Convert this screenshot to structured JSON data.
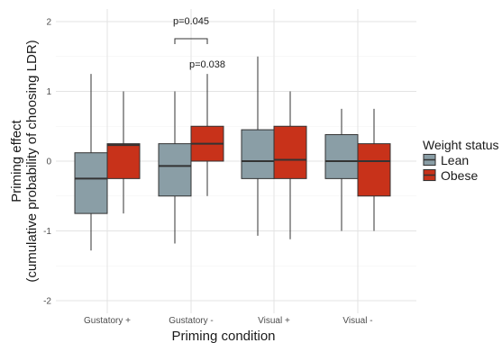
{
  "chart_data": {
    "type": "boxplot",
    "xlabel": "Priming condition",
    "ylabel_line1": "Priming effect",
    "ylabel_line2": "(cumulative probability of choosing LDR)",
    "ylim": [
      -2,
      2
    ],
    "yticks": [
      "2",
      "1",
      "0",
      "-1",
      "-2"
    ],
    "ytick_values": [
      2,
      1,
      0,
      -1,
      -2
    ],
    "categories": [
      "Gustatory +",
      "Gustatory -",
      "Visual +",
      "Visual -"
    ],
    "legend": {
      "title": "Weight status",
      "position": "right"
    },
    "series": [
      {
        "name": "Lean",
        "color": "#8a9ea6",
        "boxes": [
          {
            "min": -1.28,
            "q1": -0.75,
            "median": -0.25,
            "q3": 0.12,
            "max": 1.25
          },
          {
            "min": -1.18,
            "q1": -0.5,
            "median": -0.07,
            "q3": 0.25,
            "max": 1.0
          },
          {
            "min": -1.07,
            "q1": -0.25,
            "median": 0.0,
            "q3": 0.45,
            "max": 1.5
          },
          {
            "min": -1.0,
            "q1": -0.25,
            "median": 0.0,
            "q3": 0.38,
            "max": 0.75
          }
        ]
      },
      {
        "name": "Obese",
        "color": "#c8321a",
        "boxes": [
          {
            "min": -0.75,
            "q1": -0.25,
            "median": 0.23,
            "q3": 0.25,
            "max": 1.0
          },
          {
            "min": -0.5,
            "q1": 0.0,
            "median": 0.25,
            "q3": 0.5,
            "max": 1.25
          },
          {
            "min": -1.12,
            "q1": -0.25,
            "median": 0.02,
            "q3": 0.5,
            "max": 1.0
          },
          {
            "min": -1.0,
            "q1": -0.5,
            "median": 0.0,
            "q3": 0.25,
            "max": 0.75
          }
        ]
      }
    ],
    "annotations": [
      {
        "text": "p=0.045",
        "type": "bracket",
        "category": "Gustatory -"
      },
      {
        "text": "p=0.038",
        "type": "label",
        "category": "Gustatory -"
      }
    ],
    "grid": true
  }
}
